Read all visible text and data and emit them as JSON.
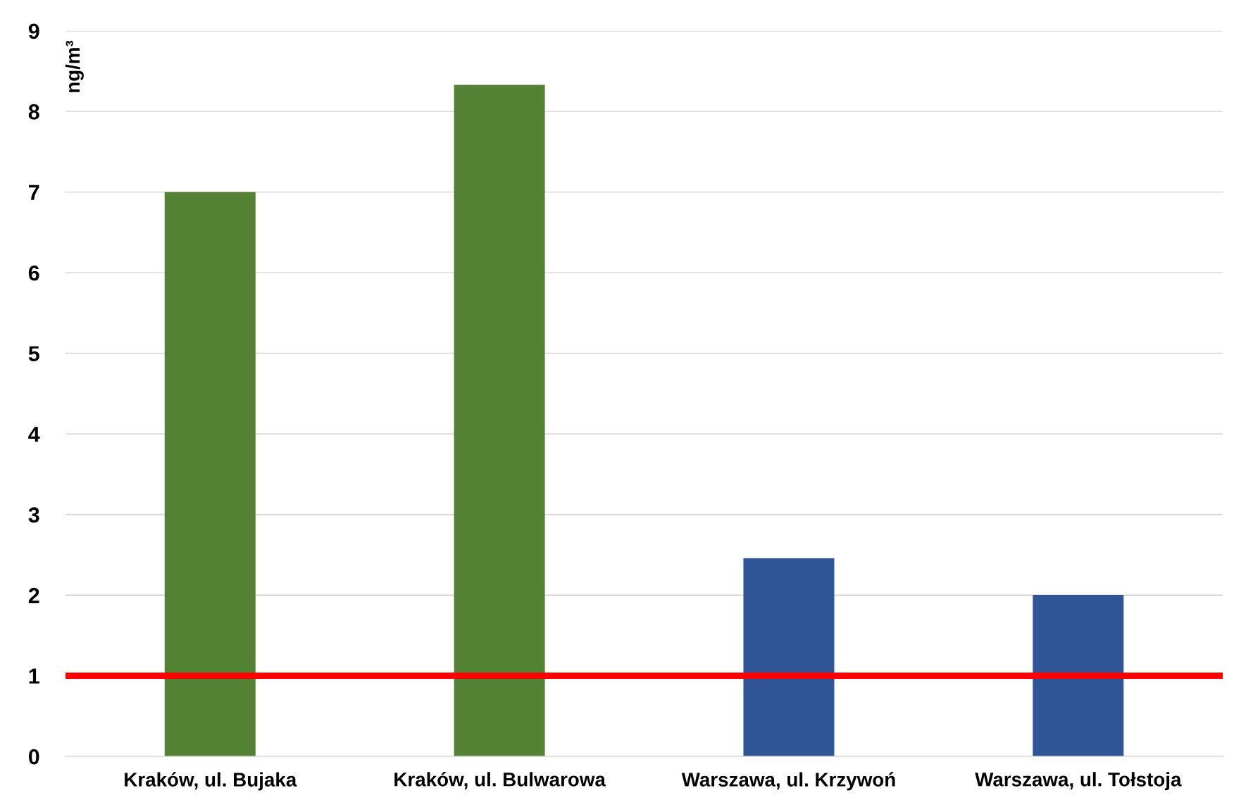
{
  "chart_data": {
    "type": "bar",
    "ylabel": "ng/m³",
    "categories": [
      "Kraków, ul. Bujaka",
      "Kraków, ul. Bulwarowa",
      "Warszawa, ul. Krzywoń",
      "Warszawa, ul. Tołstoja"
    ],
    "values": [
      7,
      8.33,
      2.46,
      2
    ],
    "colors": [
      "#548235",
      "#548235",
      "#2f5597",
      "#2f5597"
    ],
    "ylim": [
      0,
      9
    ],
    "yticks": [
      0,
      1,
      2,
      3,
      4,
      5,
      6,
      7,
      8,
      9
    ],
    "grid": "y",
    "ref_lines": [
      {
        "axis": "y",
        "value": 1,
        "color": "#ff0000",
        "line_style": "solid"
      }
    ]
  }
}
